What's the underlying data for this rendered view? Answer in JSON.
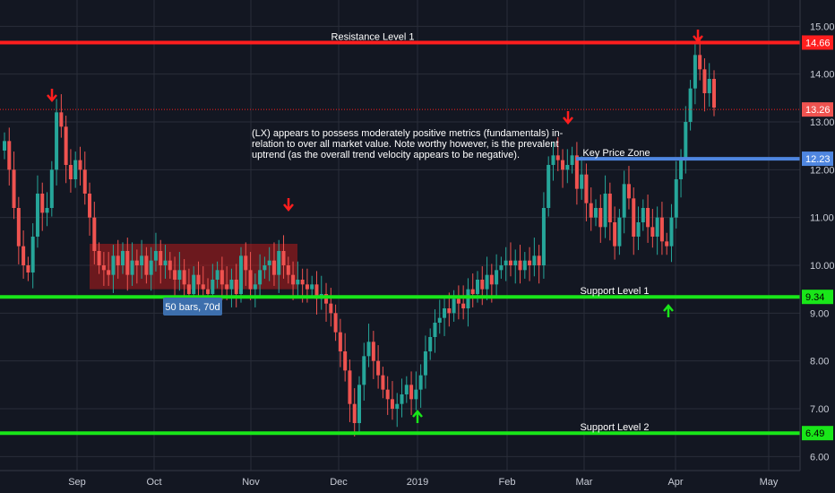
{
  "chart_data": {
    "type": "candlestick",
    "ylim": [
      5.8,
      15.25
    ],
    "y_ticks": [
      "6.00",
      "7.00",
      "8.00",
      "9.00",
      "10.00",
      "11.00",
      "12.00",
      "13.00",
      "14.00",
      "15.00"
    ],
    "x_ticks": [
      "Sep",
      "Oct",
      "Nov",
      "Dec",
      "2019",
      "Feb",
      "Mar",
      "Apr",
      "May"
    ],
    "grid": true,
    "colors": {
      "bg": "#131722",
      "grid": "#2a2e39",
      "up": "#26a69a",
      "down": "#ef5350",
      "red": "#ff1e1e",
      "green": "#19e619",
      "blue": "#4f86e0",
      "text": "#c8ccd6"
    },
    "levels": [
      {
        "label": "Resistance Level 1",
        "value": 14.66,
        "tag": "14.66",
        "color": "#ff1e1e"
      },
      {
        "label": "Key Price Zone",
        "value": 12.23,
        "tag": "12.23",
        "color": "#4f86e0"
      },
      {
        "label": "Support Level 1",
        "value": 9.34,
        "tag": "9.34",
        "color": "#19e619"
      },
      {
        "label": "Support Level 2",
        "value": 6.49,
        "tag": "6.49",
        "color": "#19e619"
      }
    ],
    "last_price": {
      "value": 13.26,
      "tag": "13.26"
    },
    "note": [
      "(LX) appears to possess moderately positive metrics (fundamentals) in-",
      "relation to over all market value. Note worthy however, is the prevalent",
      "uptrend (as the overall trend velocity appears to be negative)."
    ],
    "range_box": {
      "label": "50 bars, 70d",
      "low": 9.5,
      "high": 10.45
    },
    "close": [
      12.6,
      12.0,
      11.2,
      10.4,
      10.0,
      9.85,
      10.6,
      11.5,
      11.1,
      11.2,
      12.0,
      13.2,
      12.9,
      12.1,
      11.8,
      12.2,
      12.0,
      11.5,
      11.0,
      10.3,
      10.0,
      9.9,
      9.8,
      10.2,
      10.0,
      10.3,
      9.8,
      10.1,
      10.0,
      10.2,
      9.8,
      10.1,
      10.3,
      10.0,
      10.1,
      9.9,
      9.7,
      9.9,
      9.6,
      9.4,
      9.8,
      9.6,
      9.5,
      9.4,
      9.7,
      9.9,
      9.6,
      9.5,
      9.7,
      9.4,
      10.2,
      9.9,
      9.5,
      9.6,
      9.9,
      10.0,
      10.1,
      9.8,
      10.3,
      10.0,
      9.8,
      9.6,
      9.7,
      9.6,
      9.5,
      9.6,
      9.3,
      9.4,
      9.2,
      9.0,
      8.6,
      8.2,
      7.8,
      7.1,
      6.7,
      7.5,
      8.1,
      8.4,
      8.0,
      7.7,
      7.4,
      7.2,
      7.0,
      7.1,
      7.3,
      7.5,
      7.2,
      7.4,
      7.7,
      8.2,
      8.5,
      8.8,
      8.9,
      9.1,
      9.0,
      9.3,
      9.2,
      9.1,
      9.5,
      9.4,
      9.7,
      9.5,
      9.8,
      9.6,
      9.9,
      10.0,
      10.1,
      10.0,
      10.1,
      9.9,
      10.1,
      10.0,
      10.2,
      10.0,
      11.2,
      12.1,
      12.3,
      12.2,
      12.0,
      12.1,
      12.3,
      11.6,
      11.9,
      11.3,
      11.0,
      11.2,
      10.8,
      11.5,
      10.9,
      10.4,
      11.0,
      11.7,
      11.4,
      10.6,
      10.9,
      11.2,
      10.8,
      10.6,
      11.0,
      10.5,
      10.4,
      11.0,
      11.8,
      12.2,
      13.0,
      13.7,
      14.4,
      14.1,
      13.6,
      13.9,
      13.3
    ],
    "wick_high": [
      {
        "bar": 82,
        "high": 14.3,
        "low": 13.2
      },
      {
        "bar": 91,
        "high": 13.1,
        "low": 9.5
      },
      {
        "bar": 93,
        "high": 13.0,
        "low": 9.5
      }
    ]
  }
}
